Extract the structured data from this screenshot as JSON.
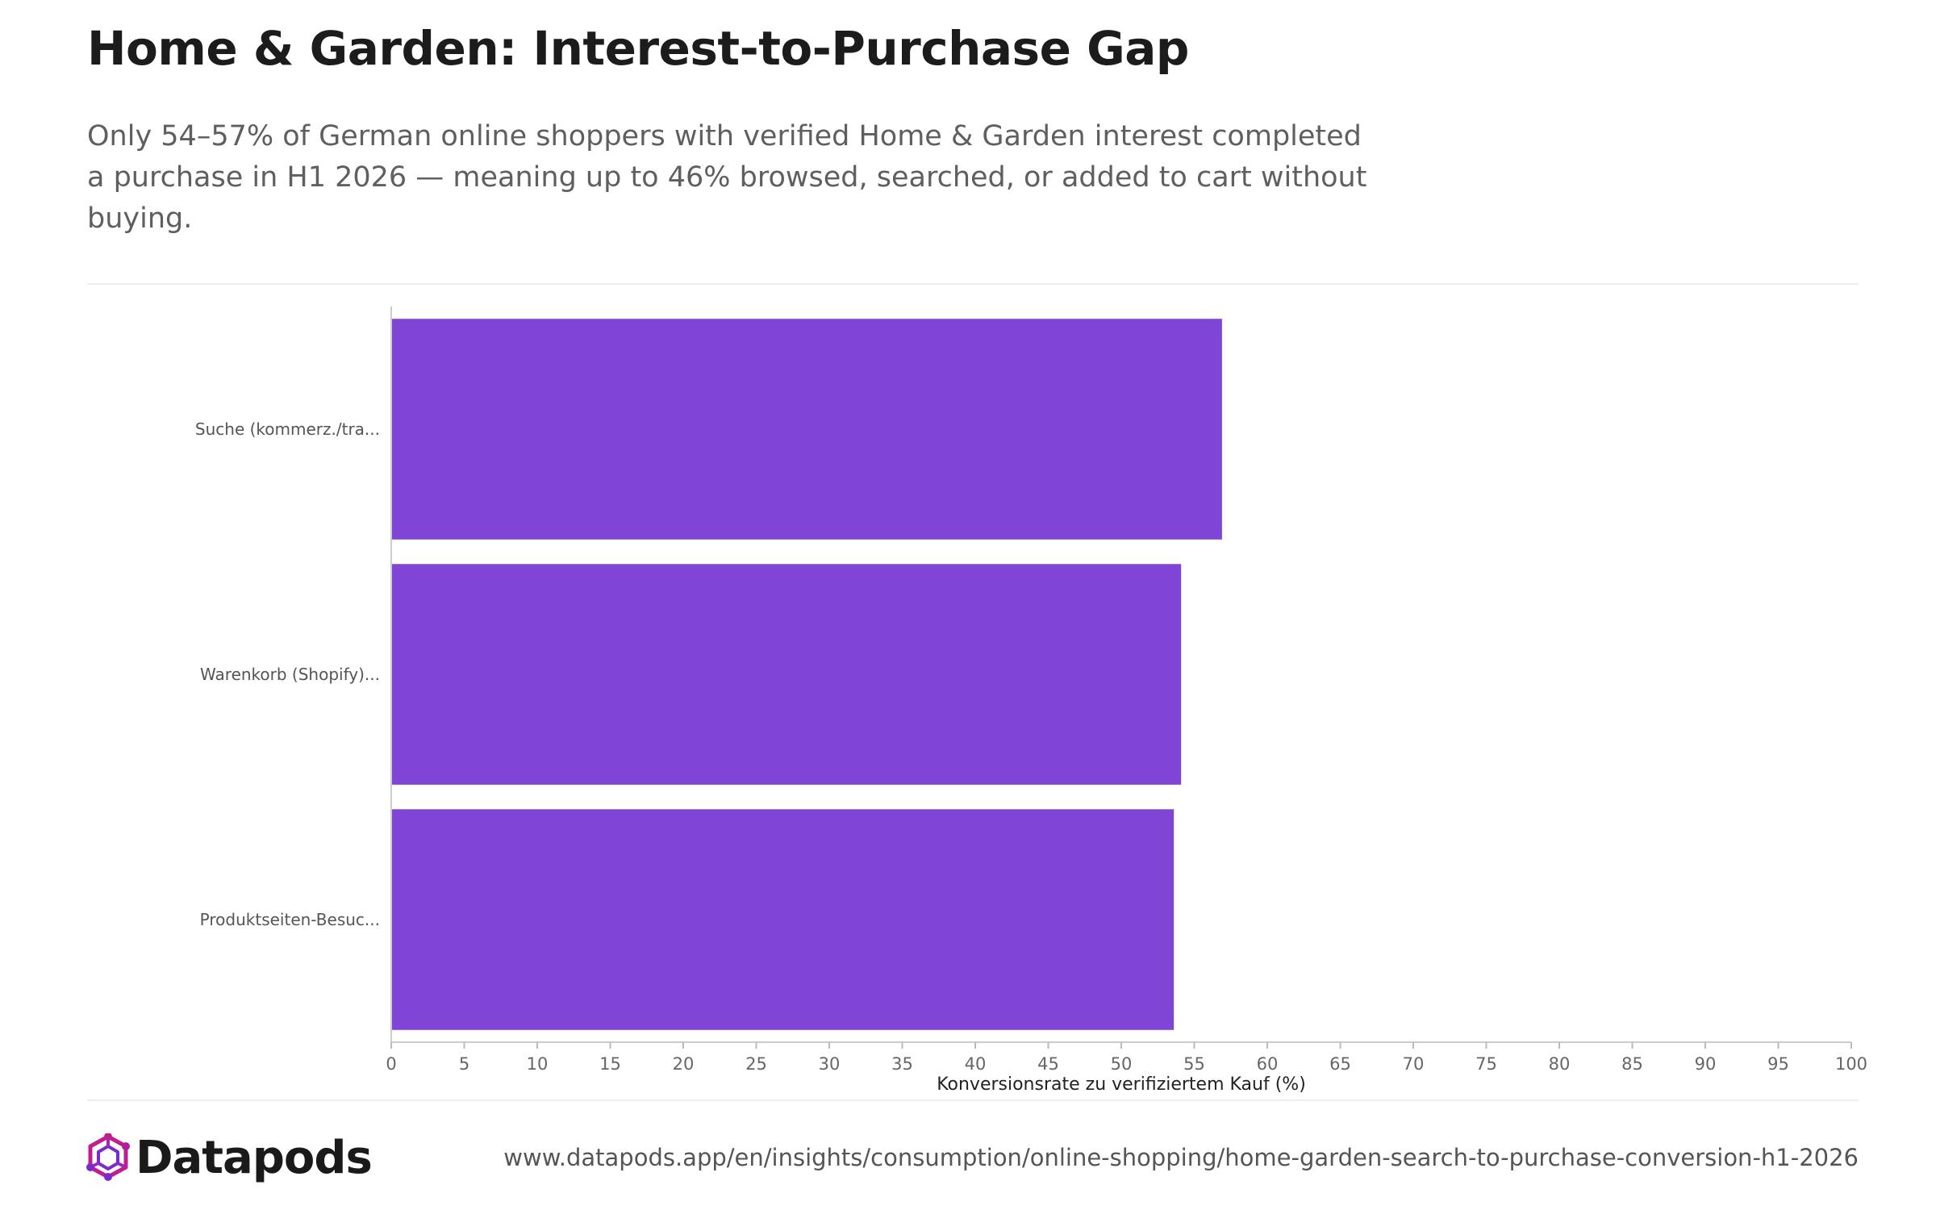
{
  "header": {
    "title": "Home & Garden: Interest-to-Purchase Gap",
    "subtitle": "Only 54–57% of German online shoppers with verified Home & Garden interest completed a purchase in H1 2026 — meaning up to 46% browsed, searched, or added to cart without buying."
  },
  "chart_data": {
    "type": "bar",
    "orientation": "horizontal",
    "categories": [
      "Suche (kommerz./tra...",
      "Warenkorb (Shopify)...",
      "Produktseiten-Besuc..."
    ],
    "values": [
      56.9,
      54.1,
      53.6
    ],
    "xlabel": "Konversionsrate zu verifiziertem Kauf (%)",
    "ylabel": "",
    "xlim": [
      0,
      100
    ],
    "x_ticks": [
      0,
      5,
      10,
      15,
      20,
      25,
      30,
      35,
      40,
      45,
      50,
      55,
      60,
      65,
      70,
      75,
      80,
      85,
      90,
      95,
      100
    ],
    "bar_color": "#7f45d4",
    "grid": false
  },
  "footer": {
    "brand": "Datapods",
    "source_url": "www.datapods.app/en/insights/consumption/online-shopping/home-garden-search-to-purchase-conversion-h1-2026"
  },
  "colors": {
    "bar": "#7f45d4",
    "logo_primary": "#c21d8f",
    "logo_secondary": "#7a2bd0"
  }
}
